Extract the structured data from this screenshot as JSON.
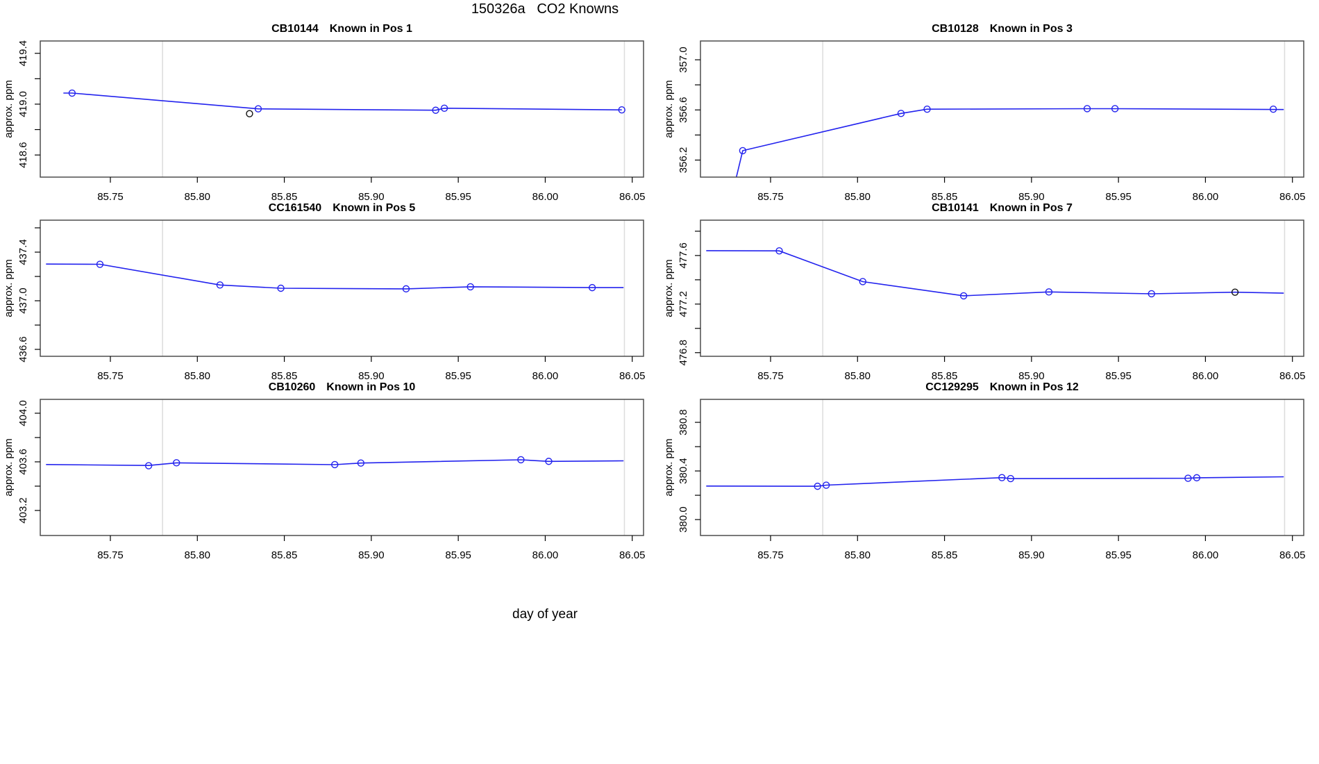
{
  "main_title": "150326a   CO2 Knowns",
  "xlabel": "day of year",
  "ylabel": "approx. ppm",
  "colors": {
    "line": "#2222ee",
    "point": "#2222ee",
    "outlier_point": "#111111",
    "border": "#4d4d4d",
    "tick": "#000000",
    "vline": "#dcdcdc",
    "background": "#ffffff",
    "text": "#000000"
  },
  "chart_data": {
    "type": "line",
    "xlabel": "day of year",
    "ylabel": "approx. ppm",
    "xlim": [
      85.7097,
      86.0565
    ],
    "xticks": [
      85.75,
      85.8,
      85.85,
      85.9,
      85.95,
      86.0,
      86.05
    ],
    "vlines": [
      85.78,
      86.0455
    ],
    "plots": [
      {
        "title_id": "CB10144",
        "title_pos": "Known in Pos 1",
        "ylim": [
          418.426,
          419.497
        ],
        "yticks": [
          {
            "v": 418.6,
            "l": "418.6"
          },
          {
            "v": 418.8,
            "l": ""
          },
          {
            "v": 419.0,
            "l": "419.0"
          },
          {
            "v": 419.2,
            "l": ""
          },
          {
            "v": 419.4,
            "l": "419.4"
          }
        ],
        "line": [
          [
            85.723,
            419.087
          ],
          [
            85.728,
            419.087
          ],
          [
            85.835,
            418.963
          ],
          [
            85.937,
            418.952
          ],
          [
            85.942,
            418.968
          ],
          [
            86.044,
            418.955
          ]
        ],
        "points": [
          [
            85.728,
            419.087
          ],
          [
            85.835,
            418.963
          ],
          [
            85.937,
            418.952
          ],
          [
            85.942,
            418.968
          ],
          [
            86.044,
            418.955
          ]
        ],
        "black_points": [
          [
            85.83,
            418.925
          ]
        ]
      },
      {
        "title_id": "CB10128",
        "title_pos": "Known in Pos 3",
        "ylim": [
          356.064,
          357.15
        ],
        "yticks": [
          {
            "v": 356.2,
            "l": "356.2"
          },
          {
            "v": 356.4,
            "l": ""
          },
          {
            "v": 356.6,
            "l": "356.6"
          },
          {
            "v": 356.8,
            "l": ""
          },
          {
            "v": 357.0,
            "l": "357.0"
          }
        ],
        "line": [
          [
            85.7275,
            355.9
          ],
          [
            85.734,
            356.275
          ],
          [
            85.825,
            356.572
          ],
          [
            85.84,
            356.606
          ],
          [
            85.932,
            356.61
          ],
          [
            85.948,
            356.61
          ],
          [
            86.045,
            356.603
          ]
        ],
        "points": [
          [
            85.734,
            356.275
          ],
          [
            85.825,
            356.572
          ],
          [
            85.84,
            356.606
          ],
          [
            85.932,
            356.61
          ],
          [
            85.948,
            356.61
          ],
          [
            86.039,
            356.606
          ]
        ],
        "black_points": []
      },
      {
        "title_id": "CC161540",
        "title_pos": "Known in Pos 5",
        "ylim": [
          436.543,
          437.663
        ],
        "yticks": [
          {
            "v": 436.6,
            "l": "436.6"
          },
          {
            "v": 436.8,
            "l": ""
          },
          {
            "v": 437.0,
            "l": "437.0"
          },
          {
            "v": 437.2,
            "l": ""
          },
          {
            "v": 437.4,
            "l": "437.4"
          },
          {
            "v": 437.6,
            "l": ""
          }
        ],
        "line": [
          [
            85.713,
            437.302
          ],
          [
            85.744,
            437.3
          ],
          [
            85.813,
            437.13
          ],
          [
            85.848,
            437.103
          ],
          [
            85.92,
            437.098
          ],
          [
            85.957,
            437.115
          ],
          [
            86.027,
            437.108
          ],
          [
            86.045,
            437.108
          ]
        ],
        "points": [
          [
            85.744,
            437.3
          ],
          [
            85.813,
            437.13
          ],
          [
            85.848,
            437.103
          ],
          [
            85.92,
            437.098
          ],
          [
            85.957,
            437.115
          ],
          [
            86.027,
            437.108
          ]
        ],
        "black_points": []
      },
      {
        "title_id": "CB10141",
        "title_pos": "Known in Pos 7",
        "ylim": [
          476.77,
          477.891
        ],
        "yticks": [
          {
            "v": 476.8,
            "l": "476.8"
          },
          {
            "v": 477.0,
            "l": ""
          },
          {
            "v": 477.2,
            "l": "477.2"
          },
          {
            "v": 477.4,
            "l": ""
          },
          {
            "v": 477.6,
            "l": "477.6"
          },
          {
            "v": 477.8,
            "l": ""
          }
        ],
        "line": [
          [
            85.713,
            477.64
          ],
          [
            85.755,
            477.638
          ],
          [
            85.803,
            477.385
          ],
          [
            85.861,
            477.268
          ],
          [
            85.91,
            477.3
          ],
          [
            85.969,
            477.285
          ],
          [
            86.017,
            477.298
          ],
          [
            86.045,
            477.29
          ]
        ],
        "points": [
          [
            85.755,
            477.638
          ],
          [
            85.803,
            477.385
          ],
          [
            85.861,
            477.268
          ],
          [
            85.91,
            477.3
          ],
          [
            85.969,
            477.285
          ]
        ],
        "black_points": [
          [
            86.017,
            477.298
          ]
        ]
      },
      {
        "title_id": "CB10260",
        "title_pos": "Known in Pos 10",
        "ylim": [
          402.994,
          404.114
        ],
        "yticks": [
          {
            "v": 403.2,
            "l": "403.2"
          },
          {
            "v": 403.4,
            "l": ""
          },
          {
            "v": 403.6,
            "l": "403.6"
          },
          {
            "v": 403.8,
            "l": ""
          },
          {
            "v": 404.0,
            "l": "404.0"
          }
        ],
        "line": [
          [
            85.713,
            403.578
          ],
          [
            85.772,
            403.57
          ],
          [
            85.788,
            403.592
          ],
          [
            85.879,
            403.577
          ],
          [
            85.894,
            403.59
          ],
          [
            85.986,
            403.617
          ],
          [
            86.002,
            403.604
          ],
          [
            86.045,
            403.608
          ]
        ],
        "points": [
          [
            85.772,
            403.568
          ],
          [
            85.788,
            403.592
          ],
          [
            85.879,
            403.577
          ],
          [
            85.894,
            403.59
          ],
          [
            85.986,
            403.617
          ],
          [
            86.002,
            403.604
          ]
        ],
        "black_points": []
      },
      {
        "title_id": "CC129295",
        "title_pos": "Known in Pos 12",
        "ylim": [
          379.869,
          380.989
        ],
        "yticks": [
          {
            "v": 380.0,
            "l": "380.0"
          },
          {
            "v": 380.2,
            "l": ""
          },
          {
            "v": 380.4,
            "l": "380.4"
          },
          {
            "v": 380.6,
            "l": ""
          },
          {
            "v": 380.8,
            "l": "380.8"
          }
        ],
        "line": [
          [
            85.713,
            380.276
          ],
          [
            85.777,
            380.274
          ],
          [
            85.782,
            380.283
          ],
          [
            85.883,
            380.345
          ],
          [
            85.888,
            380.337
          ],
          [
            85.99,
            380.34
          ],
          [
            85.995,
            380.344
          ],
          [
            86.045,
            380.352
          ]
        ],
        "points": [
          [
            85.777,
            380.274
          ],
          [
            85.782,
            380.283
          ],
          [
            85.883,
            380.345
          ],
          [
            85.888,
            380.337
          ],
          [
            85.99,
            380.34
          ],
          [
            85.995,
            380.344
          ]
        ],
        "black_points": []
      }
    ]
  }
}
